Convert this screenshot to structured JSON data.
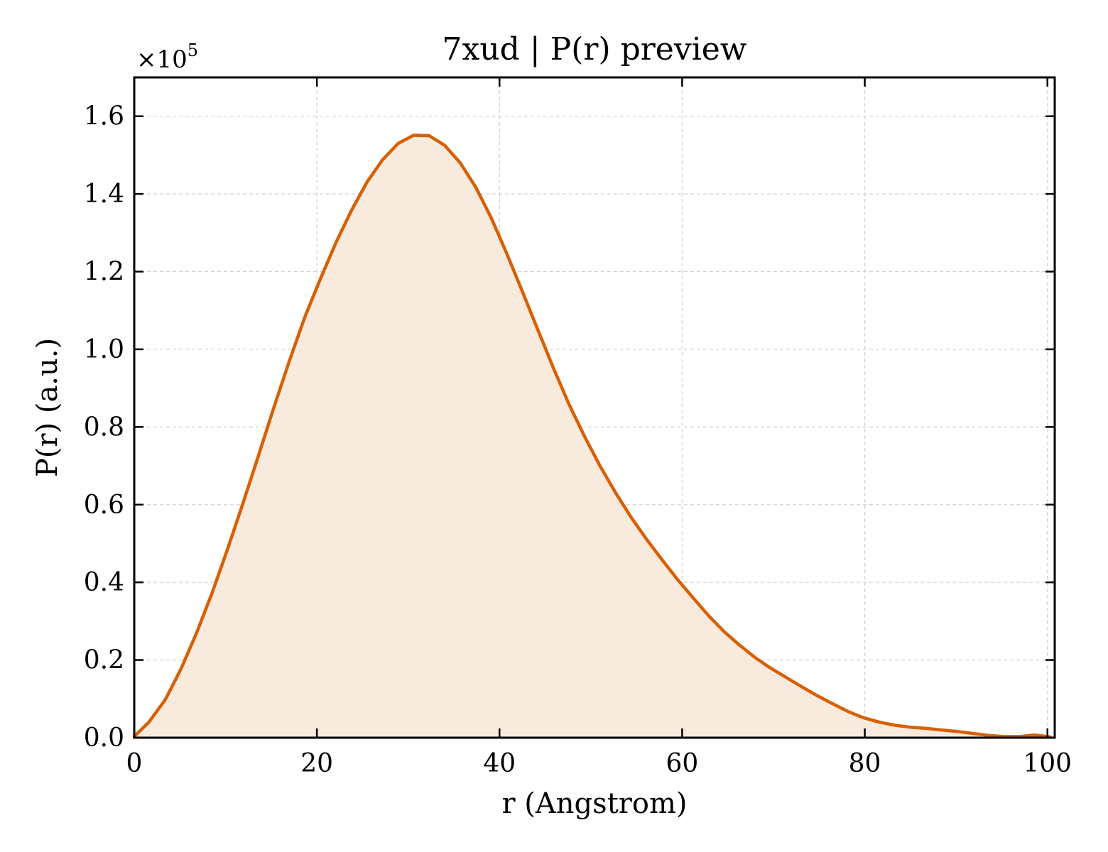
{
  "chart_data": {
    "type": "area",
    "title": "7xud | P(r) preview",
    "xlabel": "r (Angstrom)",
    "ylabel": "P(r) (a.u.)",
    "y_multiplier_label": "×10",
    "y_multiplier_exponent": "5",
    "xlim": [
      0,
      100.8
    ],
    "ylim": [
      0,
      1.7
    ],
    "xticks": [
      0,
      20,
      40,
      60,
      80,
      100
    ],
    "xtick_labels": [
      "0",
      "20",
      "40",
      "60",
      "80",
      "100"
    ],
    "yticks": [
      0.0,
      0.2,
      0.4,
      0.6,
      0.8,
      1.0,
      1.2,
      1.4,
      1.6
    ],
    "ytick_labels": [
      "0.0",
      "0.2",
      "0.4",
      "0.6",
      "0.8",
      "1.0",
      "1.2",
      "1.4",
      "1.6"
    ],
    "grid": true,
    "line_color": "#d95f02",
    "fill_color": "#f9eade",
    "series": [
      {
        "x": [
          0,
          1.6,
          3.4,
          5.1,
          6.8,
          8.5,
          10.2,
          11.9,
          13.6,
          15.3,
          17.0,
          18.7,
          20.4,
          22.1,
          23.8,
          25.5,
          27.2,
          28.9,
          30.6,
          32.3,
          34.0,
          35.7,
          37.4,
          39.1,
          40.8,
          42.5,
          44.2,
          45.9,
          47.6,
          49.3,
          51.0,
          52.7,
          54.4,
          56.1,
          57.8,
          59.5,
          61.2,
          62.9,
          64.6,
          66.3,
          68.0,
          69.7,
          71.4,
          73.1,
          74.8,
          76.5,
          78.2,
          79.9,
          81.6,
          83.3,
          85.0,
          86.7,
          88.4,
          90.1,
          91.8,
          93.5,
          95.2,
          96.9,
          98.6,
          100.3
        ],
        "y": [
          0.003,
          0.04,
          0.098,
          0.176,
          0.268,
          0.371,
          0.484,
          0.603,
          0.726,
          0.851,
          0.971,
          1.084,
          1.182,
          1.275,
          1.358,
          1.431,
          1.488,
          1.53,
          1.551,
          1.55,
          1.525,
          1.48,
          1.417,
          1.338,
          1.246,
          1.149,
          1.05,
          0.952,
          0.859,
          0.776,
          0.7,
          0.631,
          0.568,
          0.511,
          0.458,
          0.407,
          0.36,
          0.314,
          0.273,
          0.238,
          0.206,
          0.179,
          0.155,
          0.131,
          0.108,
          0.087,
          0.067,
          0.051,
          0.04,
          0.032,
          0.027,
          0.024,
          0.02,
          0.016,
          0.011,
          0.006,
          0.003,
          0.003,
          0.007,
          0.002
        ]
      }
    ]
  }
}
